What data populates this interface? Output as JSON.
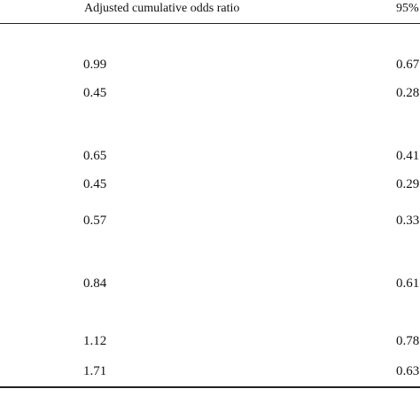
{
  "table": {
    "headers": {
      "odds_ratio": "Adjusted cumulative odds ratio",
      "ci": "95%"
    },
    "rows": [
      {
        "or": "0.99",
        "ci": "0.67"
      },
      {
        "or": "0.45",
        "ci": "0.28"
      },
      {
        "or": "0.65",
        "ci": "0.41"
      },
      {
        "or": "0.45",
        "ci": "0.29"
      },
      {
        "or": "0.57",
        "ci": "0.33"
      },
      {
        "or": "0.84",
        "ci": "0.61"
      },
      {
        "or": "1.12",
        "ci": "0.78"
      },
      {
        "or": "1.71",
        "ci": "0.63"
      }
    ]
  }
}
